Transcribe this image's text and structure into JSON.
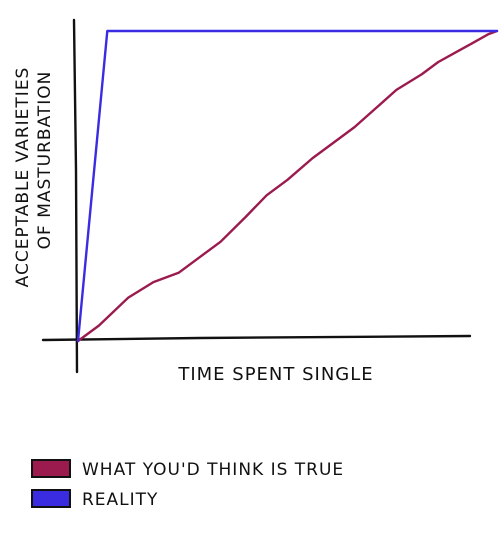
{
  "chart_data": {
    "type": "line",
    "xlabel": "TIME SPENT SINGLE",
    "ylabel": [
      "ACCEPTABLE VARIETIES",
      "OF MASTURBATION"
    ],
    "xlim": [
      0,
      100
    ],
    "ylim": [
      0,
      100
    ],
    "grid": false,
    "legend_position": "bottom-left",
    "series": [
      {
        "name": "WHAT YOU'D THINK IS TRUE",
        "color": "#9b1b4f",
        "x": [
          0,
          5,
          12,
          18,
          24,
          29,
          34,
          40,
          45,
          50,
          56,
          61,
          66,
          71,
          76,
          82,
          86,
          90,
          94,
          98,
          100
        ],
        "y": [
          0,
          5,
          14,
          19,
          22,
          27,
          32,
          40,
          47,
          52,
          59,
          64,
          69,
          75,
          81,
          86,
          90,
          93,
          96,
          99,
          100
        ]
      },
      {
        "name": "REALITY",
        "color": "#3a2ce0",
        "x": [
          0,
          7,
          100
        ],
        "y": [
          0,
          100,
          100
        ]
      }
    ]
  }
}
